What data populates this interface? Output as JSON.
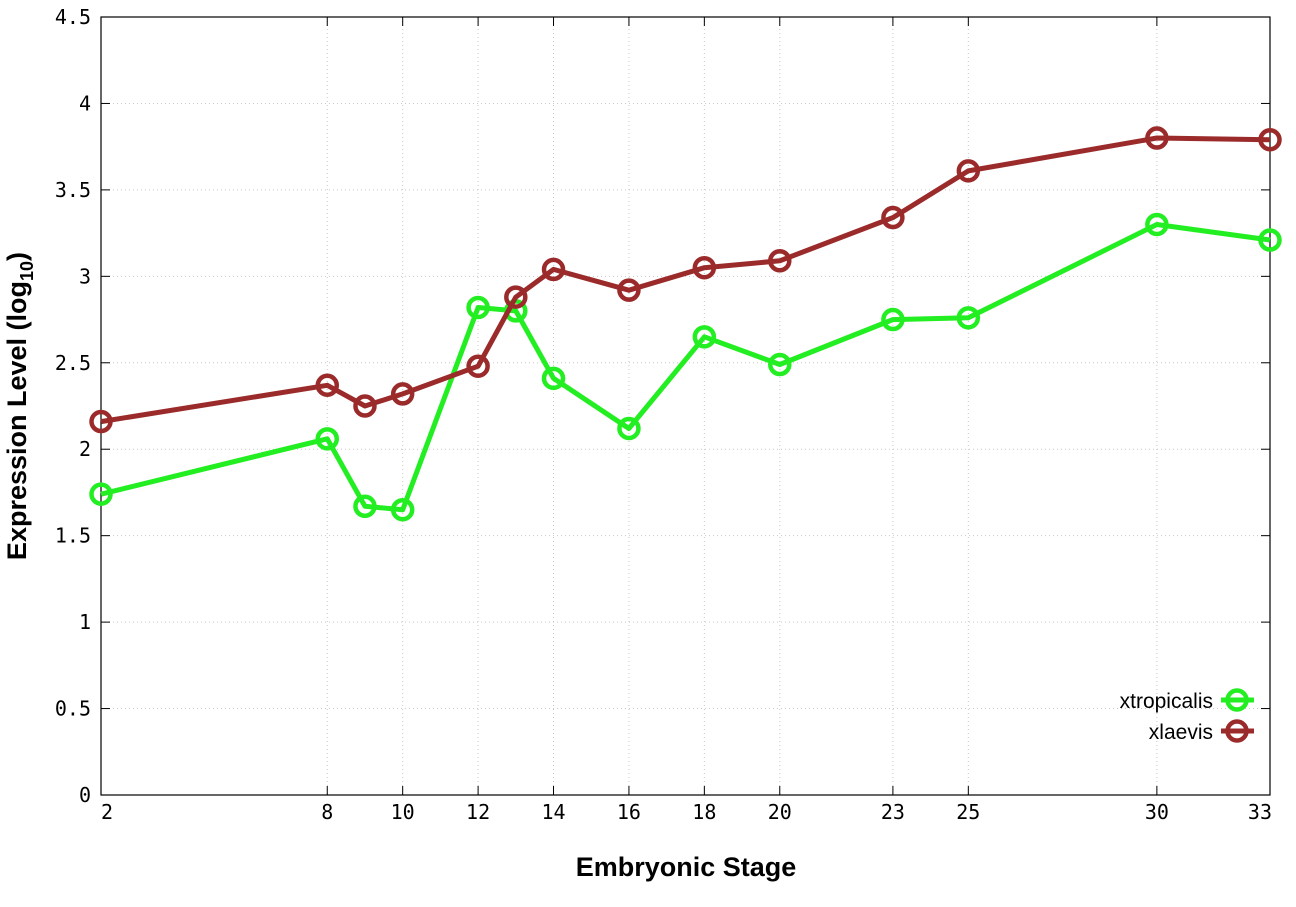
{
  "chart_data": {
    "type": "line",
    "xlabel": "Embryonic Stage",
    "ylabel": "Expression Level (log",
    "ylabel_subscript": "10",
    "ylabel_close": ")",
    "xlim": [
      2,
      33
    ],
    "ylim": [
      0,
      4.5
    ],
    "x_ticks": [
      2,
      8,
      10,
      12,
      14,
      16,
      18,
      20,
      23,
      25,
      30,
      33
    ],
    "y_ticks": [
      0,
      0.5,
      1,
      1.5,
      2,
      2.5,
      3,
      3.5,
      4,
      4.5
    ],
    "y_tick_labels": [
      "0",
      "0.5",
      "1",
      "1.5",
      "2",
      "2.5",
      "3",
      "3.5",
      "4",
      "4.5"
    ],
    "grid": true,
    "legend_position": "bottom-right",
    "series": [
      {
        "name": "xtropicalis",
        "color": "#22ee22",
        "x": [
          2,
          8,
          9,
          10,
          12,
          13,
          14,
          16,
          18,
          20,
          23,
          25,
          30,
          33
        ],
        "y": [
          1.74,
          2.06,
          1.67,
          1.65,
          2.82,
          2.8,
          2.41,
          2.12,
          2.65,
          2.49,
          2.75,
          2.76,
          3.3,
          3.21
        ]
      },
      {
        "name": "xlaevis",
        "color": "#9b2b2b",
        "x": [
          2,
          8,
          9,
          10,
          12,
          13,
          14,
          16,
          18,
          20,
          23,
          25,
          30,
          33
        ],
        "y": [
          2.16,
          2.37,
          2.25,
          2.32,
          2.48,
          2.88,
          3.04,
          2.92,
          3.05,
          3.09,
          3.34,
          3.61,
          3.8,
          3.79
        ]
      }
    ]
  }
}
